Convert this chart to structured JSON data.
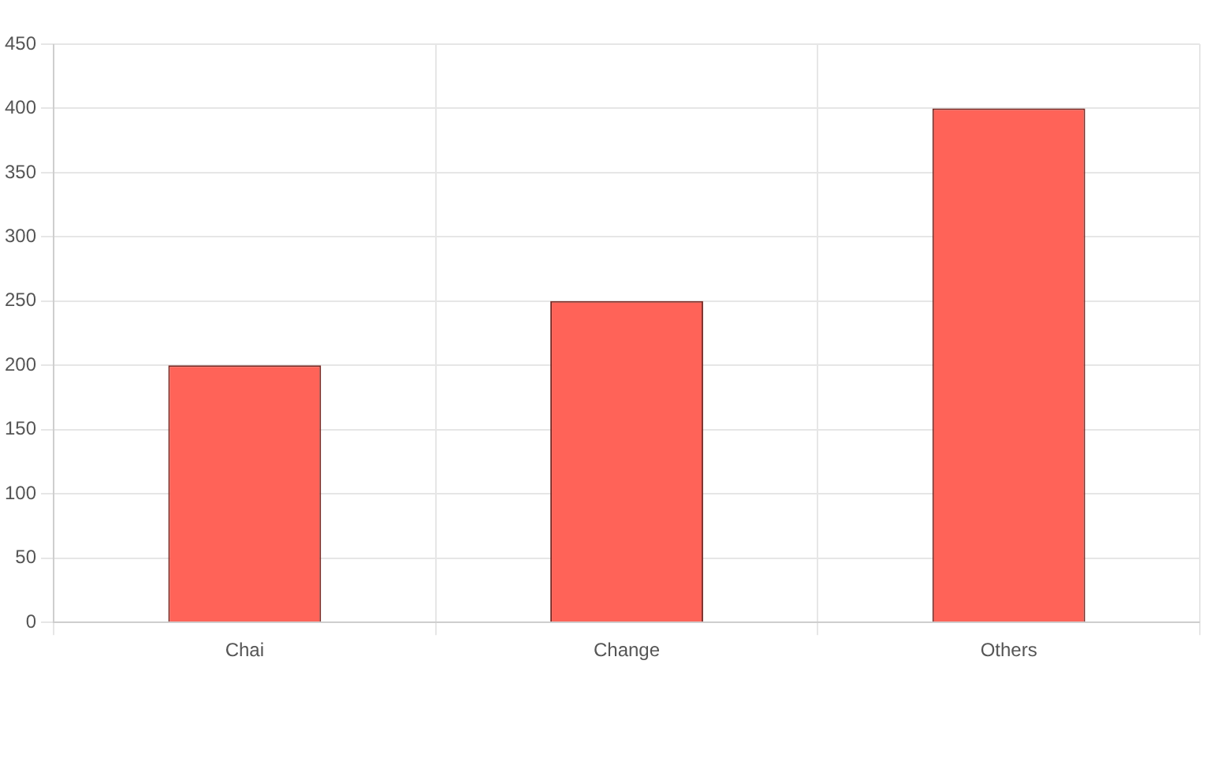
{
  "chart_data": {
    "type": "bar",
    "categories": [
      "Chai",
      "Change",
      "Others"
    ],
    "values": [
      200,
      250,
      400
    ],
    "color": "#ff6358",
    "ylim": [
      0,
      450
    ],
    "yticks": [
      0,
      50,
      100,
      150,
      200,
      250,
      300,
      350,
      400,
      450
    ],
    "grid": true,
    "legend": false
  }
}
